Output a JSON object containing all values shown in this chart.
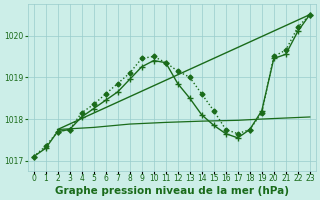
{
  "title": "Graphe pression niveau de la mer (hPa)",
  "series_A": {
    "x": [
      0,
      1,
      2,
      3,
      4,
      5,
      6,
      7,
      8,
      9,
      10,
      11,
      12,
      13,
      14,
      15,
      16,
      17,
      18,
      19,
      20,
      21,
      22,
      23
    ],
    "y": [
      1017.1,
      1017.35,
      1017.7,
      1017.75,
      1018.15,
      1018.35,
      1018.6,
      1018.85,
      1019.1,
      1019.45,
      1019.5,
      1019.35,
      1019.15,
      1019.0,
      1018.6,
      1018.2,
      1017.75,
      1017.65,
      1017.75,
      1018.15,
      1019.5,
      1019.65,
      1020.2,
      1020.5
    ],
    "color": "#1a6b1a",
    "marker": "D",
    "markersize": 2.5,
    "linestyle": "dotted",
    "linewidth": 1.0
  },
  "series_B": {
    "x": [
      0,
      1,
      2,
      3,
      4,
      5,
      6,
      7,
      8,
      9,
      10,
      11,
      12,
      13,
      14,
      15,
      16,
      17,
      18,
      19,
      20,
      21,
      22,
      23
    ],
    "y": [
      1017.1,
      1017.3,
      1017.7,
      1017.75,
      1018.05,
      1018.25,
      1018.45,
      1018.65,
      1018.95,
      1019.25,
      1019.4,
      1019.35,
      1018.85,
      1018.5,
      1018.1,
      1017.85,
      1017.65,
      1017.55,
      1017.75,
      1018.2,
      1019.45,
      1019.55,
      1020.1,
      1020.5
    ],
    "color": "#1a6b1a",
    "marker": "+",
    "markersize": 5,
    "linestyle": "solid",
    "linewidth": 1.0
  },
  "series_C": {
    "x": [
      2,
      5,
      8,
      11,
      14,
      17,
      19,
      23
    ],
    "y": [
      1017.75,
      1017.8,
      1017.88,
      1017.92,
      1017.95,
      1017.97,
      1018.0,
      1018.05
    ],
    "color": "#1a6b1a",
    "marker": null,
    "linestyle": "solid",
    "linewidth": 0.9
  },
  "series_D": {
    "x": [
      2,
      23
    ],
    "y": [
      1017.75,
      1020.5
    ],
    "color": "#1a6b1a",
    "marker": null,
    "linestyle": "solid",
    "linewidth": 1.0
  },
  "ylim": [
    1016.75,
    1020.75
  ],
  "yticks": [
    1017,
    1018,
    1019,
    1020
  ],
  "xlim": [
    -0.5,
    23.5
  ],
  "xtick_labels": [
    "0",
    "1",
    "2",
    "3",
    "4",
    "5",
    "6",
    "7",
    "8",
    "9",
    "10",
    "11",
    "12",
    "13",
    "14",
    "15",
    "16",
    "17",
    "18",
    "19",
    "20",
    "21",
    "22",
    "23"
  ],
  "bg_color": "#cceee8",
  "grid_color": "#99cccc",
  "line_color": "#1a6b1a",
  "text_color": "#1a6b1a",
  "title_fontsize": 7.5,
  "tick_fontsize": 5.5
}
